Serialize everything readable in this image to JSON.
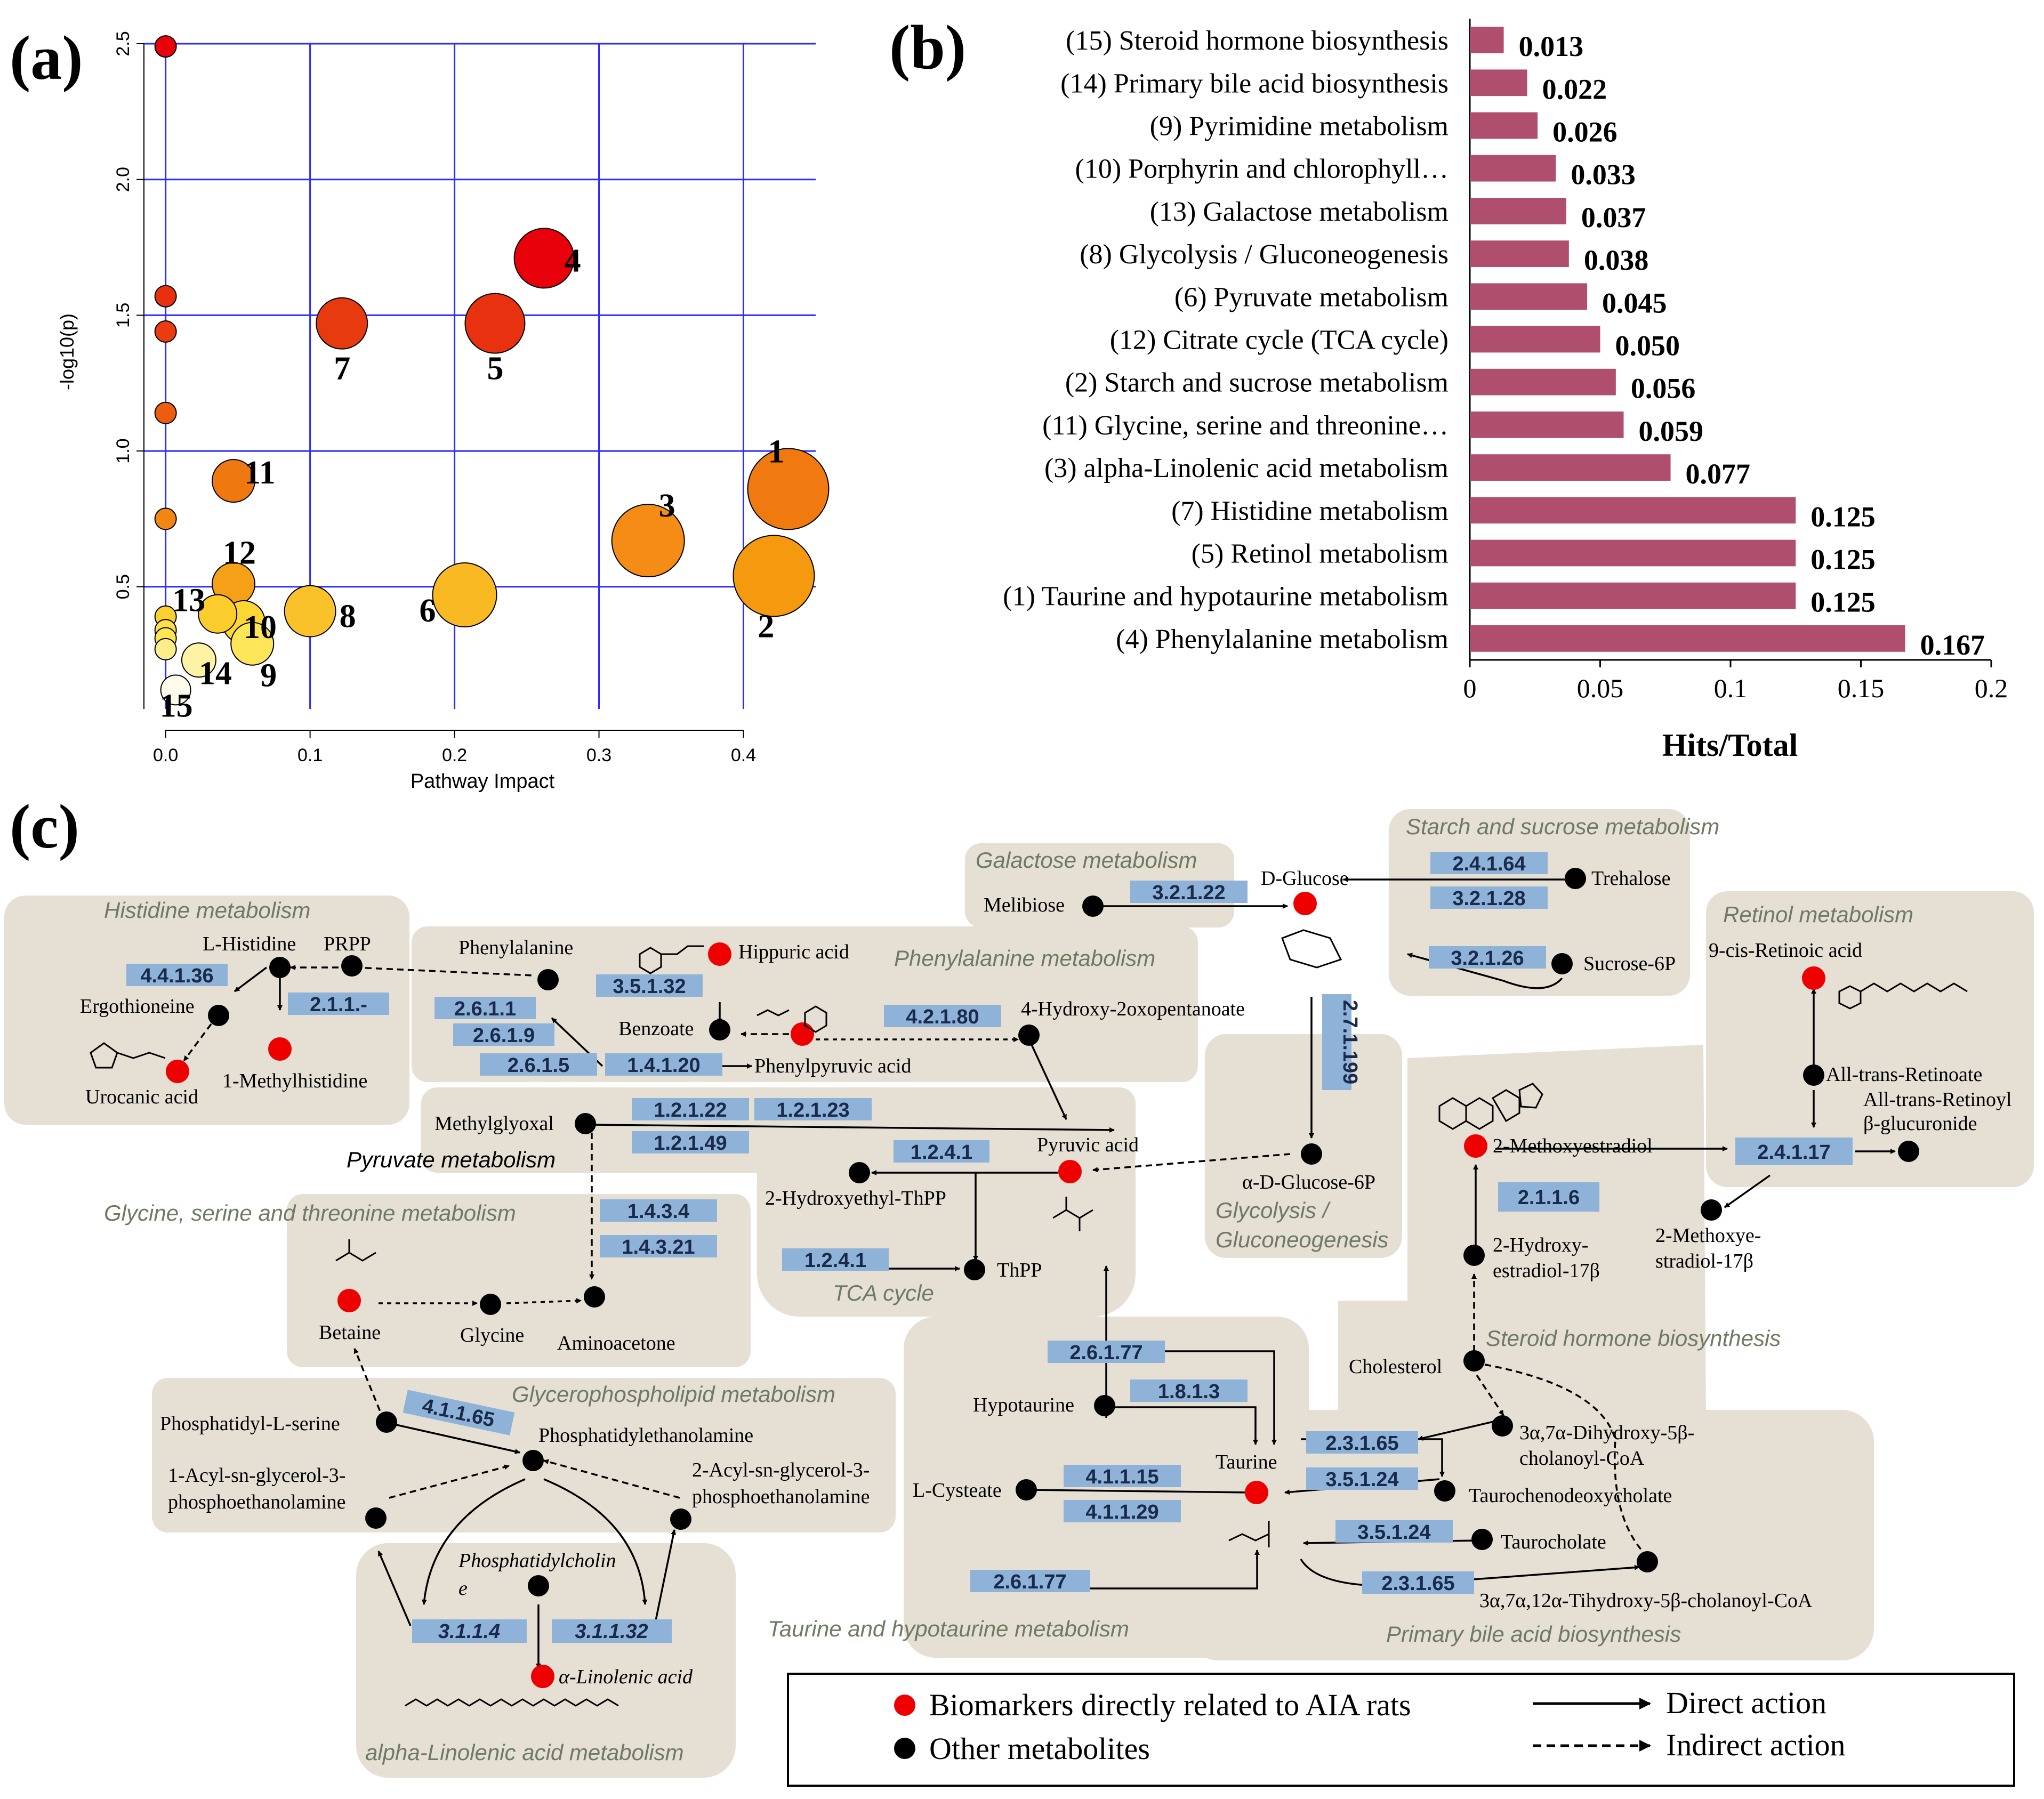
{
  "panel_labels": {
    "a": "(a)",
    "b": "(b)",
    "c": "(c)"
  },
  "chart_data": [
    {
      "type": "scatter",
      "title": "",
      "xlabel": "Pathway Impact",
      "ylabel": "-log10(p)",
      "xlim": [
        -0.015,
        0.45
      ],
      "ylim": [
        0.05,
        2.5
      ],
      "xticks": [
        0.0,
        0.1,
        0.2,
        0.3,
        0.4
      ],
      "xtick_labels": [
        "0.0",
        "0.1",
        "0.2",
        "0.3",
        "0.4"
      ],
      "yticks": [
        0.5,
        1.0,
        1.5,
        2.0,
        2.5
      ],
      "ytick_labels": [
        "0.5",
        "1.0",
        "1.5",
        "2.0",
        "2.5"
      ],
      "grid": true,
      "points": [
        {
          "id": "4",
          "label": "4",
          "x": 0.262,
          "y": 1.71,
          "size": 14,
          "color": "#e8000b"
        },
        {
          "id": "7",
          "label": "7",
          "x": 0.122,
          "y": 1.47,
          "size": 12,
          "color": "#e83a0f"
        },
        {
          "id": "5",
          "label": "5",
          "x": 0.228,
          "y": 1.47,
          "size": 14,
          "color": "#e8320f"
        },
        {
          "id": "1",
          "label": "1",
          "x": 0.431,
          "y": 0.86,
          "size": 19,
          "color": "#f07a10"
        },
        {
          "id": "11",
          "label": "11",
          "x": 0.047,
          "y": 0.89,
          "size": 10,
          "color": "#f07810"
        },
        {
          "id": "3",
          "label": "3",
          "x": 0.334,
          "y": 0.67,
          "size": 17,
          "color": "#f48c15"
        },
        {
          "id": "2",
          "label": "2",
          "x": 0.421,
          "y": 0.54,
          "size": 19,
          "color": "#f5990f"
        },
        {
          "id": "12",
          "label": "12",
          "x": 0.047,
          "y": 0.51,
          "size": 10,
          "color": "#f5a016"
        },
        {
          "id": "6",
          "label": "6",
          "x": 0.207,
          "y": 0.47,
          "size": 15,
          "color": "#f9b922"
        },
        {
          "id": "8",
          "label": "8",
          "x": 0.1,
          "y": 0.41,
          "size": 12,
          "color": "#fac22a"
        },
        {
          "id": "13",
          "label": "13",
          "x": 0.036,
          "y": 0.4,
          "size": 9,
          "color": "#fbcd2c"
        },
        {
          "id": "10",
          "label": "10",
          "x": 0.054,
          "y": 0.37,
          "size": 10,
          "color": "#fdd835"
        },
        {
          "id": "9",
          "label": "9",
          "x": 0.06,
          "y": 0.29,
          "size": 10,
          "color": "#fde55a"
        },
        {
          "id": "14",
          "label": "14",
          "x": 0.023,
          "y": 0.23,
          "size": 8,
          "color": "#fef2a5"
        },
        {
          "id": "15",
          "label": "15",
          "x": 0.007,
          "y": 0.12,
          "size": 7,
          "color": "#fffbea"
        },
        {
          "label": "",
          "x": 0.0,
          "y": 2.49,
          "size": 5,
          "color": "#e8000b"
        },
        {
          "label": "",
          "x": 0.0,
          "y": 1.57,
          "size": 5,
          "color": "#e8300f"
        },
        {
          "label": "",
          "x": 0.0,
          "y": 1.44,
          "size": 5,
          "color": "#ea3c0f"
        },
        {
          "label": "",
          "x": 0.0,
          "y": 1.14,
          "size": 5,
          "color": "#ee5c10"
        },
        {
          "label": "",
          "x": 0.0,
          "y": 0.75,
          "size": 5,
          "color": "#f28613"
        },
        {
          "label": "",
          "x": 0.0,
          "y": 0.39,
          "size": 5,
          "color": "#fbd02f"
        },
        {
          "label": "",
          "x": 0.0,
          "y": 0.34,
          "size": 5,
          "color": "#fde048"
        },
        {
          "label": "",
          "x": 0.0,
          "y": 0.31,
          "size": 5,
          "color": "#fde652"
        },
        {
          "label": "",
          "x": 0.0,
          "y": 0.27,
          "size": 5,
          "color": "#feee8a"
        }
      ]
    },
    {
      "type": "bar",
      "orientation": "horizontal",
      "title": "",
      "xlabel": "Hits/Total",
      "ylabel": "",
      "xlim": [
        0,
        0.2
      ],
      "xticks": [
        0,
        0.05,
        0.1,
        0.15,
        0.2
      ],
      "xtick_labels": [
        "0",
        "0.05",
        "0.1",
        "0.15",
        "0.2"
      ],
      "bar_color": "#b04e6e",
      "categories": [
        "(15) Steroid hormone biosynthesis",
        "(14) Primary bile acid biosynthesis",
        "(9) Pyrimidine metabolism",
        "(10) Porphyrin and chlorophyll…",
        "(13) Galactose metabolism",
        "(8) Glycolysis / Gluconeogenesis",
        "(6) Pyruvate metabolism",
        "(12) Citrate cycle (TCA cycle)",
        "(2) Starch and sucrose metabolism",
        "(11) Glycine, serine and threonine…",
        "(3) alpha-Linolenic acid metabolism",
        "(7) Histidine metabolism",
        "(5) Retinol metabolism",
        "(1) Taurine and hypotaurine metabolism",
        "(4) Phenylalanine metabolism"
      ],
      "values": [
        0.013,
        0.022,
        0.026,
        0.033,
        0.037,
        0.038,
        0.045,
        0.05,
        0.056,
        0.059,
        0.077,
        0.125,
        0.125,
        0.125,
        0.167
      ],
      "value_labels": [
        "0.013",
        "0.022",
        "0.026",
        "0.033",
        "0.037",
        "0.038",
        "0.045",
        "0.050",
        "0.056",
        "0.059",
        "0.077",
        "0.125",
        "0.125",
        "0.125",
        "0.167"
      ]
    }
  ],
  "pathway_map": {
    "pathways": {
      "histidine": "Histidine metabolism",
      "phenylalanine": "Phenylalanine metabolism",
      "galactose": "Galactose metabolism",
      "starch": "Starch and sucrose metabolism",
      "retinol": "Retinol metabolism",
      "pyruvate": "Pyruvate metabolism",
      "glycine": "Glycine, serine and threonine metabolism",
      "tca": "TCA cycle",
      "glycolysis1": "Glycolysis /",
      "glycolysis2": "Gluconeogenesis",
      "steroid": "Steroid hormone biosynthesis",
      "glycerophospholipid": "Glycerophospholipid metabolism",
      "taurine": "Taurine and hypotaurine metabolism",
      "bile": "Primary bile acid biosynthesis",
      "linolenic": "alpha-Linolenic acid metabolism"
    },
    "metabolites": {
      "l_histidine": "L-Histidine",
      "prpp": "PRPP",
      "ergothioneine": "Ergothioneine",
      "urocanic": "Urocanic acid",
      "methylhistidine": "1-Methylhistidine",
      "phenylalanine": "Phenylalanine",
      "hippuric": "Hippuric acid",
      "benzoate": "Benzoate",
      "phenylpyruvic": "Phenylpyruvic acid",
      "hydroxy_oxopentanoate": "4-Hydroxy-2oxopentanoate",
      "melibiose": "Melibiose",
      "d_glucose": "D-Glucose",
      "trehalose": "Trehalose",
      "sucrose6p": "Sucrose-6P",
      "retinoic": "9-cis-Retinoic acid",
      "all_trans_retinoate": "All-trans-Retinoate",
      "glucuronide1": "All-trans-Retinoyl",
      "glucuronide2": "β-glucuronide",
      "methylglyoxal": "Methylglyoxal",
      "pyruvic": "Pyruvic acid",
      "hydroxyethyl_thpp": "2-Hydroxyethyl-ThPP",
      "thpp": "ThPP",
      "glucose6p": "α-D-Glucose-6P",
      "methoxyestradiol": "2-Methoxyestradiol",
      "hydroxyestradiol1": "2-Hydroxy-",
      "hydroxyestradiol2": "estradiol-17β",
      "methoxyestradiol17_1": "2-Methoxye-",
      "methoxyestradiol17_2": "stradiol-17β",
      "betaine": "Betaine",
      "glycine": "Glycine",
      "aminoacetone": "Aminoacetone",
      "cholesterol": "Cholesterol",
      "hypotaurine": "Hypotaurine",
      "phosphatidylserine": "Phosphatidyl-L-serine",
      "phosphatidylethanolamine": "Phosphatidylethanolamine",
      "acyl1_a": "1-Acyl-sn-glycerol-3-",
      "acyl1_b": "phosphoethanolamine",
      "acyl2_a": "2-Acyl-sn-glycerol-3-",
      "acyl2_b": "phosphoethanolamine",
      "dihydroxy_a": "3α,7α-Dihydroxy-5β-",
      "dihydroxy_b": "cholanoyl-CoA",
      "taurine": "Taurine",
      "taurochenodeoxycholate": "Taurochenodeoxycholate",
      "l_cysteate": "L-Cysteate",
      "taurocholate": "Taurocholate",
      "trihydroxy": "3α,7α,12α-Tihydroxy-5β-cholanoyl-CoA",
      "phosphatidylcholine_a": "Phosphatidylcholin",
      "phosphatidylcholine_b": "e",
      "linolenic": "α-Linolenic acid"
    },
    "enzymes": {
      "e_4_4_1_36": "4.4.1.36",
      "e_2_1_1": "2.1.1.-",
      "e_3_5_1_32": "3.5.1.32",
      "e_2_6_1_1": "2.6.1.1",
      "e_2_6_1_9": "2.6.1.9",
      "e_2_6_1_5": "2.6.1.5",
      "e_1_4_1_20": "1.4.1.20",
      "e_4_2_1_80": "4.2.1.80",
      "e_3_2_1_22": "3.2.1.22",
      "e_2_4_1_64": "2.4.1.64",
      "e_3_2_1_28": "3.2.1.28",
      "e_3_2_1_26": "3.2.1.26",
      "e_2_7_1_199": "2.7.1.199",
      "e_1_2_1_22": "1.2.1.22",
      "e_1_2_1_23": "1.2.1.23",
      "e_1_2_1_49": "1.2.1.49",
      "e_1_2_4_1a": "1.2.4.1",
      "e_1_2_4_1b": "1.2.4.1",
      "e_2_4_1_17": "2.4.1.17",
      "e_2_1_1_6": "2.1.1.6",
      "e_1_4_3_4": "1.4.3.4",
      "e_1_4_3_21": "1.4.3.21",
      "e_2_6_1_77a": "2.6.1.77",
      "e_1_8_1_3": "1.8.1.3",
      "e_4_1_1_65": "4.1.1.65",
      "e_2_3_1_65a": "2.3.1.65",
      "e_3_5_1_24a": "3.5.1.24",
      "e_4_1_1_15": "4.1.1.15",
      "e_4_1_1_29": "4.1.1.29",
      "e_3_5_1_24b": "3.5.1.24",
      "e_2_6_1_77b": "2.6.1.77",
      "e_2_3_1_65b": "2.3.1.65",
      "e_3_1_1_4": "3.1.1.4",
      "e_3_1_1_32": "3.1.1.32"
    },
    "legend": {
      "red": "Biomarkers directly related to AIA rats",
      "black": "Other metabolites",
      "direct": "Direct action",
      "indirect": "Indirect action"
    },
    "colors": {
      "biomarker": "#ee0000",
      "metabolite": "#000000",
      "pathway_box": "#e5dfd4",
      "enzyme_box": "#8fb3d8",
      "pathway_label": "#6f7a62"
    }
  }
}
